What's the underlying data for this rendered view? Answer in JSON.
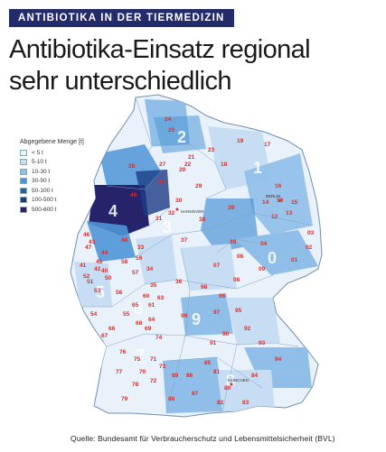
{
  "kicker": "ANTIBIOTIKA IN DER TIERMEDIZIN",
  "headline": {
    "line1": "Antibiotika-Einsatz regional",
    "line2": "sehr unterschiedlich"
  },
  "legend": {
    "title": "Abgegebene Menge [t]",
    "items": [
      {
        "label": "< 5 t",
        "color": "#e9f1fa"
      },
      {
        "label": "5-10 t",
        "color": "#c7ddf3"
      },
      {
        "label": "10-30 t",
        "color": "#8fbfe9"
      },
      {
        "label": "30-50 t",
        "color": "#4f95d6"
      },
      {
        "label": "50-100 t",
        "color": "#2761a6"
      },
      {
        "label": "100-500 t",
        "color": "#1d3c86"
      },
      {
        "label": "500-600 t",
        "color": "#26236b"
      }
    ]
  },
  "postcode_zones": [
    "2",
    "1",
    "4",
    "3",
    "0",
    "5",
    "6",
    "9",
    "7",
    "8"
  ],
  "map_labels": [
    {
      "text": "17",
      "fill": "#c7ddf3"
    },
    {
      "text": "19",
      "fill": "#c7ddf3"
    },
    {
      "text": "18",
      "fill": "#c7ddf3"
    },
    {
      "text": "26",
      "fill": "#2761a6"
    },
    {
      "text": "27",
      "fill": "#8fbfe9"
    },
    {
      "text": "28",
      "fill": "#8fbfe9"
    },
    {
      "text": "23",
      "fill": "#c7ddf3"
    },
    {
      "text": "21",
      "fill": "#c7ddf3"
    },
    {
      "text": "29",
      "fill": "#c7ddf3"
    },
    {
      "text": "16",
      "fill": "#c7ddf3"
    },
    {
      "text": "14",
      "fill": "#c7ddf3"
    },
    {
      "text": "13",
      "fill": "#c7ddf3"
    },
    {
      "text": "15",
      "fill": "#c7ddf3"
    },
    {
      "text": "49",
      "fill": "#26236b"
    },
    {
      "text": "48",
      "fill": "#1d3c86"
    },
    {
      "text": "39",
      "fill": "#c7ddf3"
    },
    {
      "text": "38",
      "fill": "#c7ddf3"
    },
    {
      "text": "31",
      "fill": "#c7ddf3"
    },
    {
      "text": "33",
      "fill": "#8fbfe9"
    },
    {
      "text": "32",
      "fill": "#c7ddf3"
    },
    {
      "text": "46",
      "fill": "#8fbfe9"
    },
    {
      "text": "47",
      "fill": "#c7ddf3"
    },
    {
      "text": "59",
      "fill": "#8fbfe9"
    },
    {
      "text": "44",
      "fill": "#c7ddf3"
    },
    {
      "text": "45",
      "fill": "#c7ddf3"
    },
    {
      "text": "41",
      "fill": "#c7ddf3"
    },
    {
      "text": "40",
      "fill": "#c7ddf3"
    },
    {
      "text": "42",
      "fill": "#c7ddf3"
    },
    {
      "text": "58",
      "fill": "#c7ddf3"
    },
    {
      "text": "57",
      "fill": "#c7ddf3"
    },
    {
      "text": "52",
      "fill": "#c7ddf3"
    },
    {
      "text": "50",
      "fill": "#c7ddf3"
    },
    {
      "text": "53",
      "fill": "#c7ddf3"
    },
    {
      "text": "51",
      "fill": "#c7ddf3"
    },
    {
      "text": "54",
      "fill": "#c7ddf3"
    },
    {
      "text": "56",
      "fill": "#c7ddf3"
    },
    {
      "text": "55",
      "fill": "#c7ddf3"
    },
    {
      "text": "65",
      "fill": "#c7ddf3"
    },
    {
      "text": "60",
      "fill": "#c7ddf3"
    },
    {
      "text": "61",
      "fill": "#c7ddf3"
    },
    {
      "text": "63",
      "fill": "#c7ddf3"
    },
    {
      "text": "64",
      "fill": "#c7ddf3"
    },
    {
      "text": "67",
      "fill": "#c7ddf3"
    },
    {
      "text": "66",
      "fill": "#c7ddf3"
    },
    {
      "text": "68",
      "fill": "#c7ddf3"
    },
    {
      "text": "69",
      "fill": "#c7ddf3"
    },
    {
      "text": "74",
      "fill": "#c7ddf3"
    },
    {
      "text": "76",
      "fill": "#c7ddf3"
    },
    {
      "text": "75",
      "fill": "#c7ddf3"
    },
    {
      "text": "70",
      "fill": "#c7ddf3"
    },
    {
      "text": "71",
      "fill": "#c7ddf3"
    },
    {
      "text": "72",
      "fill": "#c7ddf3"
    },
    {
      "text": "73",
      "fill": "#c7ddf3"
    },
    {
      "text": "77",
      "fill": "#c7ddf3"
    },
    {
      "text": "78",
      "fill": "#c7ddf3"
    },
    {
      "text": "79",
      "fill": "#c7ddf3"
    },
    {
      "text": "88",
      "fill": "#c7ddf3"
    },
    {
      "text": "89",
      "fill": "#c7ddf3"
    },
    {
      "text": "86",
      "fill": "#c7ddf3"
    },
    {
      "text": "87",
      "fill": "#c7ddf3"
    },
    {
      "text": "82",
      "fill": "#c7ddf3"
    },
    {
      "text": "80",
      "fill": "#c7ddf3"
    },
    {
      "text": "81",
      "fill": "#c7ddf3"
    },
    {
      "text": "85",
      "fill": "#c7ddf3"
    },
    {
      "text": "84",
      "fill": "#8fbfe9"
    },
    {
      "text": "83",
      "fill": "#c7ddf3"
    },
    {
      "text": "94",
      "fill": "#8fbfe9"
    },
    {
      "text": "93",
      "fill": "#c7ddf3"
    },
    {
      "text": "92",
      "fill": "#c7ddf3"
    },
    {
      "text": "91",
      "fill": "#c7ddf3"
    },
    {
      "text": "90",
      "fill": "#c7ddf3"
    },
    {
      "text": "95",
      "fill": "#c7ddf3"
    },
    {
      "text": "96",
      "fill": "#c7ddf3"
    },
    {
      "text": "97",
      "fill": "#c7ddf3"
    },
    {
      "text": "98",
      "fill": "#c7ddf3"
    },
    {
      "text": "99",
      "fill": "#c7ddf3"
    },
    {
      "text": "36",
      "fill": "#c7ddf3"
    },
    {
      "text": "37",
      "fill": "#c7ddf3"
    },
    {
      "text": "34",
      "fill": "#c7ddf3"
    },
    {
      "text": "35",
      "fill": "#c7ddf3"
    },
    {
      "text": "06",
      "fill": "#c7ddf3"
    },
    {
      "text": "07",
      "fill": "#c7ddf3"
    },
    {
      "text": "08",
      "fill": "#c7ddf3"
    },
    {
      "text": "09",
      "fill": "#c7ddf3"
    },
    {
      "text": "04",
      "fill": "#8fbfe9"
    },
    {
      "text": "01",
      "fill": "#c7ddf3"
    },
    {
      "text": "02",
      "fill": "#c7ddf3"
    },
    {
      "text": "03",
      "fill": "#c7ddf3"
    },
    {
      "text": "39",
      "fill": "#8fbfe9"
    },
    {
      "text": "12",
      "fill": "#c7ddf3"
    },
    {
      "text": "10",
      "fill": "#c7ddf3"
    },
    {
      "text": "22",
      "fill": "#c7ddf3"
    },
    {
      "text": "20",
      "fill": "#c7ddf3"
    },
    {
      "text": "24",
      "fill": "#c7ddf3"
    },
    {
      "text": "25",
      "fill": "#c7ddf3"
    },
    {
      "text": "43",
      "fill": "#c7ddf3"
    },
    {
      "text": "30",
      "fill": "#c7ddf3"
    }
  ],
  "cities": [
    "BERLIN",
    "HANNOVER",
    "MÜNCHEN"
  ],
  "source": "Quelle: Bundesamt für Verbraucherschutz und Lebensmittelsicherheit (BVL)"
}
